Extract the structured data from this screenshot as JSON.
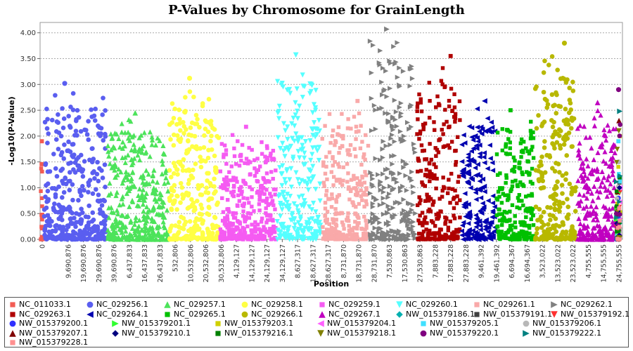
{
  "chart_data": {
    "type": "scatter",
    "title": "P-Values by Chromosome for GrainLength",
    "xlabel": "Position",
    "ylabel": "-Log10(P-Value)",
    "ylim": [
      0,
      4.2
    ],
    "y_ticks": [
      "0.00",
      "0.50",
      "1.00",
      "1.50",
      "2.00",
      "2.50",
      "3.00",
      "3.50",
      "4.00"
    ],
    "grid": true,
    "legend_position": "bottom",
    "x_tick_labels": [
      "0",
      "9,690,876",
      "19,690,876",
      "29,690,876",
      "39,690,876",
      "6,437,833",
      "16,437,833",
      "26,437,833",
      "532,806",
      "10,532,806",
      "20,532,806",
      "30,532,806",
      "4,129,127",
      "14,129,127",
      "24,129,127",
      "34,129,127",
      "8,627,317",
      "18,627,317",
      "28,627,317",
      "8,731,870",
      "18,731,870",
      "28,731,870",
      "7,530,863",
      "17,530,863",
      "27,530,863",
      "7,883,228",
      "17,883,228",
      "27,883,228",
      "9,461,392",
      "19,461,392",
      "6,694,367",
      "16,694,367",
      "3,523,022",
      "13,523,022",
      "23,523,022",
      "4,755,555",
      "14,755,555",
      "24,755,555"
    ],
    "series": [
      {
        "name": "NC_011033.1",
        "color": "#f25c54",
        "marker": "square",
        "peak": 1.9
      },
      {
        "name": "NC_029256.1",
        "color": "#5a5ef0",
        "marker": "circle",
        "peak": 3.02
      },
      {
        "name": "NC_029257.1",
        "color": "#4ce35a",
        "marker": "triangle-up",
        "peak": 2.45
      },
      {
        "name": "NC_029258.1",
        "color": "#ffff44",
        "marker": "circle",
        "peak": 3.12
      },
      {
        "name": "NC_029259.1",
        "color": "#f55bf2",
        "marker": "square",
        "peak": 2.18
      },
      {
        "name": "NC_029260.1",
        "color": "#55ffff",
        "marker": "triangle-down",
        "peak": 3.57
      },
      {
        "name": "NC_029261.1",
        "color": "#f9a9a9",
        "marker": "square",
        "peak": 2.68
      },
      {
        "name": "NC_029262.1",
        "color": "#808080",
        "marker": "triangle-right",
        "peak": 4.07
      },
      {
        "name": "NC_029263.1",
        "color": "#b00000",
        "marker": "square",
        "peak": 3.55
      },
      {
        "name": "NC_029264.1",
        "color": "#0000b0",
        "marker": "triangle-left",
        "peak": 2.68
      },
      {
        "name": "NC_029265.1",
        "color": "#00c000",
        "marker": "square",
        "peak": 2.5
      },
      {
        "name": "NC_029266.1",
        "color": "#b8b800",
        "marker": "circle",
        "peak": 3.8
      },
      {
        "name": "NC_029267.1",
        "color": "#c000c0",
        "marker": "triangle-up",
        "peak": 2.65
      },
      {
        "name": "NW_015379186.1",
        "color": "#00b0b0",
        "marker": "diamond",
        "peak": 0.5
      },
      {
        "name": "NW_015379191.1",
        "color": "#404040",
        "marker": "square",
        "peak": 1.1
      },
      {
        "name": "NW_015379192.1",
        "color": "#ff3030",
        "marker": "triangle-down",
        "peak": 0.9
      },
      {
        "name": "NW_015379200.1",
        "color": "#3030ff",
        "marker": "circle",
        "peak": 0.8
      },
      {
        "name": "NW_015379201.1",
        "color": "#30ff30",
        "marker": "triangle-right",
        "peak": 0.9
      },
      {
        "name": "NW_015379203.1",
        "color": "#d0d000",
        "marker": "square",
        "peak": 2.0
      },
      {
        "name": "NW_015379204.1",
        "color": "#ff60ff",
        "marker": "triangle-left",
        "peak": 1.0
      },
      {
        "name": "NW_015379205.1",
        "color": "#40e0ff",
        "marker": "square",
        "peak": 1.9
      },
      {
        "name": "NW_015379206.1",
        "color": "#b8b8b8",
        "marker": "circle",
        "peak": 1.5
      },
      {
        "name": "NW_015379207.1",
        "color": "#800000",
        "marker": "triangle-up",
        "peak": 2.3
      },
      {
        "name": "NW_015379210.1",
        "color": "#000080",
        "marker": "diamond",
        "peak": 1.0
      },
      {
        "name": "NW_015379216.1",
        "color": "#008000",
        "marker": "square",
        "peak": 1.2
      },
      {
        "name": "NW_015379218.1",
        "color": "#808000",
        "marker": "triangle-down",
        "peak": 2.1
      },
      {
        "name": "NW_015379220.1",
        "color": "#800080",
        "marker": "circle",
        "peak": 2.9
      },
      {
        "name": "NW_015379222.1",
        "color": "#008080",
        "marker": "triangle-right",
        "peak": 2.48
      },
      {
        "name": "NW_015379228.1",
        "color": "#ff9090",
        "marker": "square",
        "peak": 0.6
      }
    ]
  }
}
